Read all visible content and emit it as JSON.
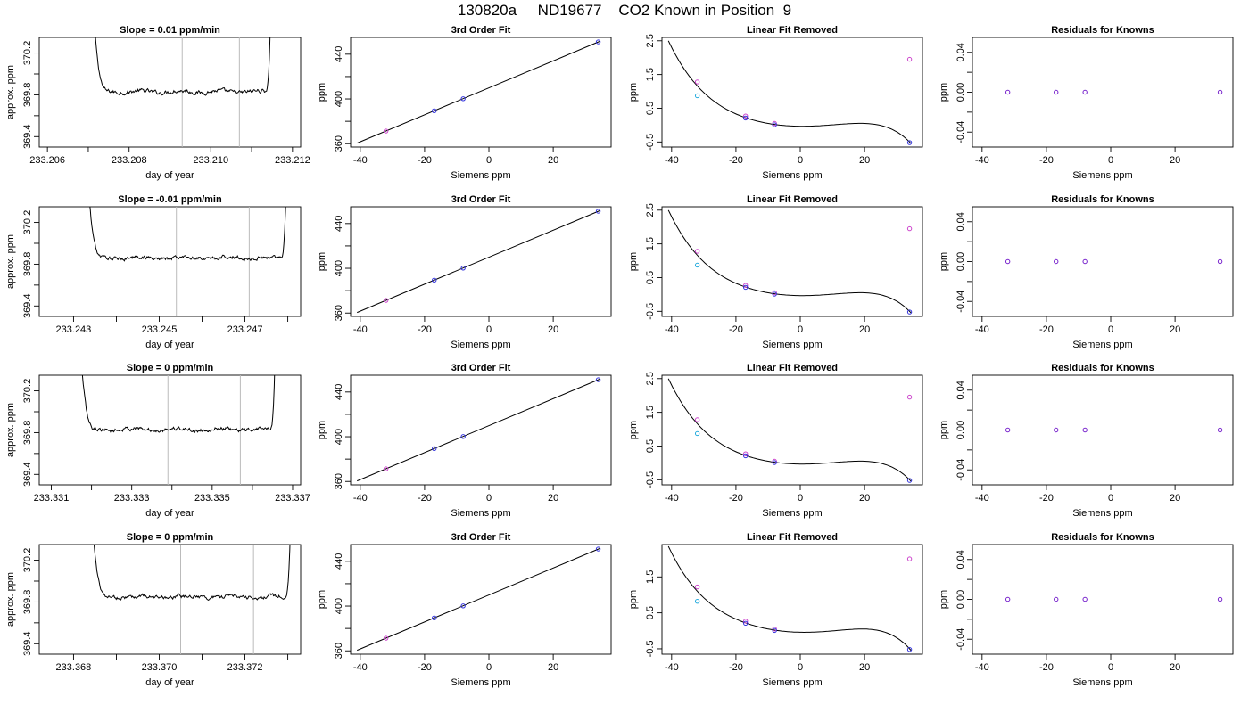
{
  "page_title": "130820a     ND19677    CO2 Known in Position  9",
  "chart_data": [
    {
      "type": "line",
      "panel": "trace",
      "row": 0,
      "title": "Slope =  0.01  ppm/min",
      "xlabel": "day of year",
      "ylabel": "approx. ppm",
      "xlim": [
        233.2058,
        233.2122
      ],
      "ylim": [
        369.3,
        370.35
      ],
      "xticks": [
        233.206,
        233.207,
        233.208,
        233.209,
        233.21,
        233.211,
        233.212
      ],
      "xtick_labels": [
        "233.206",
        "",
        "233.208",
        "",
        "233.210",
        "",
        "233.212"
      ],
      "yticks": [
        369.4,
        369.6,
        369.8,
        370.0,
        370.2
      ],
      "ytick_labels": [
        "369.4",
        "",
        "369.8",
        "",
        "370.2"
      ],
      "vlines": [
        233.2093,
        233.2107
      ],
      "trace": {
        "start": 233.2071,
        "end": 233.2115,
        "baseline": 369.83,
        "rise_left": 0.0004,
        "rise_right": 0.0002
      }
    },
    {
      "type": "scatter",
      "panel": "fit",
      "row": 0,
      "title": "3rd Order Fit",
      "xlabel": "Siemens ppm",
      "ylabel": "ppm",
      "xlim": [
        -43,
        38
      ],
      "ylim": [
        357,
        455
      ],
      "xticks": [
        -40,
        -20,
        0,
        20
      ],
      "xtick_labels": [
        "-40",
        "-20",
        "0",
        "20"
      ],
      "yticks": [
        360,
        380,
        400,
        420,
        440
      ],
      "ytick_labels": [
        "360",
        "",
        "400",
        "",
        "440"
      ],
      "line": {
        "x": [
          -41,
          34.5
        ],
        "y": [
          360.5,
          451.5
        ]
      },
      "points": [
        {
          "x": -32,
          "y": 371.3,
          "color": "#cc44cc"
        },
        {
          "x": -17,
          "y": 389.4,
          "color": "#3333dd"
        },
        {
          "x": -8,
          "y": 400.2,
          "color": "#3333dd"
        },
        {
          "x": 34,
          "y": 451.0,
          "color": "#3333dd"
        }
      ]
    },
    {
      "type": "scatter",
      "panel": "linear-removed",
      "row": 0,
      "title": "Linear Fit Removed",
      "xlabel": "Siemens ppm",
      "ylabel": "ppm",
      "xlim": [
        -43,
        38
      ],
      "ylim": [
        -0.65,
        2.6
      ],
      "xticks": [
        -40,
        -20,
        0,
        20
      ],
      "xtick_labels": [
        "-40",
        "-20",
        "0",
        "20"
      ],
      "yticks": [
        -0.5,
        0.5,
        1.5,
        2.5
      ],
      "ytick_labels": [
        "-0.5",
        "0.5",
        "1.5",
        "2.5"
      ],
      "curve_range": [
        -41,
        34.5
      ],
      "curve_points": [
        [
          -41,
          2.5
        ],
        [
          -32,
          1.16
        ],
        [
          -17,
          0.22
        ],
        [
          -8,
          0.02
        ],
        [
          20,
          0.05
        ],
        [
          34,
          -0.5
        ]
      ],
      "points": [
        {
          "x": -32,
          "y": 1.28,
          "color": "#cc44cc"
        },
        {
          "x": -32,
          "y": 0.87,
          "color": "#22aadd"
        },
        {
          "x": -17,
          "y": 0.27,
          "color": "#cc44cc"
        },
        {
          "x": -17,
          "y": 0.21,
          "color": "#3333dd"
        },
        {
          "x": -8,
          "y": 0.05,
          "color": "#cc44cc"
        },
        {
          "x": -8,
          "y": 0.01,
          "color": "#3333dd"
        },
        {
          "x": 34,
          "y": 1.95,
          "color": "#cc44cc"
        },
        {
          "x": 34,
          "y": -0.52,
          "color": "#3333dd"
        }
      ]
    },
    {
      "type": "scatter",
      "panel": "residuals",
      "row": 0,
      "title": "Residuals for Knowns",
      "xlabel": "Siemens ppm",
      "ylabel": "ppm",
      "xlim": [
        -43,
        38
      ],
      "ylim": [
        -0.055,
        0.055
      ],
      "xticks": [
        -40,
        -20,
        0,
        20
      ],
      "xtick_labels": [
        "-40",
        "-20",
        "0",
        "20"
      ],
      "yticks": [
        -0.04,
        -0.02,
        0,
        0.02,
        0.04
      ],
      "ytick_labels": [
        "-0.04",
        "",
        "0.00",
        "",
        "0.04"
      ],
      "points": [
        {
          "x": -32,
          "y": 0,
          "color": "#7722cc"
        },
        {
          "x": -17,
          "y": 0,
          "color": "#7722cc"
        },
        {
          "x": -8,
          "y": 0,
          "color": "#7722cc"
        },
        {
          "x": 34,
          "y": 0,
          "color": "#7722cc"
        }
      ]
    },
    {
      "type": "line",
      "panel": "trace",
      "row": 1,
      "title": "Slope =  -0.01  ppm/min",
      "xlabel": "day of year",
      "ylabel": "approx. ppm",
      "xlim": [
        233.2422,
        233.2483
      ],
      "ylim": [
        369.3,
        370.35
      ],
      "xticks": [
        233.243,
        233.244,
        233.245,
        233.246,
        233.247,
        233.248
      ],
      "xtick_labels": [
        "233.243",
        "",
        "233.245",
        "",
        "233.247",
        ""
      ],
      "yticks": [
        369.4,
        369.6,
        369.8,
        370.0,
        370.2
      ],
      "ytick_labels": [
        "369.4",
        "",
        "369.8",
        "",
        "370.2"
      ],
      "vlines": [
        233.2454,
        233.2471
      ],
      "trace": {
        "start": 233.2433,
        "end": 233.248,
        "baseline": 369.86,
        "rise_left": 0.0004,
        "rise_right": 0.0002
      }
    },
    {
      "type": "scatter",
      "panel": "fit",
      "row": 1,
      "title": "3rd Order Fit",
      "xlabel": "Siemens ppm",
      "ylabel": "ppm",
      "xlim": [
        -43,
        38
      ],
      "ylim": [
        357,
        455
      ],
      "xticks": [
        -40,
        -20,
        0,
        20
      ],
      "xtick_labels": [
        "-40",
        "-20",
        "0",
        "20"
      ],
      "yticks": [
        360,
        380,
        400,
        420,
        440
      ],
      "ytick_labels": [
        "360",
        "",
        "400",
        "",
        "440"
      ],
      "line": {
        "x": [
          -41,
          34.5
        ],
        "y": [
          360.5,
          451.5
        ]
      },
      "points": [
        {
          "x": -32,
          "y": 371.3,
          "color": "#cc44cc"
        },
        {
          "x": -17,
          "y": 389.4,
          "color": "#3333dd"
        },
        {
          "x": -8,
          "y": 400.2,
          "color": "#3333dd"
        },
        {
          "x": 34,
          "y": 451.0,
          "color": "#3333dd"
        }
      ]
    },
    {
      "type": "scatter",
      "panel": "linear-removed",
      "row": 1,
      "title": "Linear Fit Removed",
      "xlabel": "Siemens ppm",
      "ylabel": "ppm",
      "xlim": [
        -43,
        38
      ],
      "ylim": [
        -0.65,
        2.6
      ],
      "xticks": [
        -40,
        -20,
        0,
        20
      ],
      "xtick_labels": [
        "-40",
        "-20",
        "0",
        "20"
      ],
      "yticks": [
        -0.5,
        0.5,
        1.5,
        2.5
      ],
      "ytick_labels": [
        "-0.5",
        "0.5",
        "1.5",
        "2.5"
      ],
      "curve_range": [
        -41,
        34.5
      ],
      "curve_points": [
        [
          -41,
          2.5
        ],
        [
          -32,
          1.16
        ],
        [
          -17,
          0.22
        ],
        [
          -8,
          0.02
        ],
        [
          20,
          0.05
        ],
        [
          34,
          -0.5
        ]
      ],
      "points": [
        {
          "x": -32,
          "y": 1.28,
          "color": "#cc44cc"
        },
        {
          "x": -32,
          "y": 0.87,
          "color": "#22aadd"
        },
        {
          "x": -17,
          "y": 0.27,
          "color": "#cc44cc"
        },
        {
          "x": -17,
          "y": 0.21,
          "color": "#3333dd"
        },
        {
          "x": -8,
          "y": 0.05,
          "color": "#cc44cc"
        },
        {
          "x": -8,
          "y": 0.01,
          "color": "#3333dd"
        },
        {
          "x": 34,
          "y": 1.95,
          "color": "#cc44cc"
        },
        {
          "x": 34,
          "y": -0.52,
          "color": "#3333dd"
        }
      ]
    },
    {
      "type": "scatter",
      "panel": "residuals",
      "row": 1,
      "title": "Residuals for Knowns",
      "xlabel": "Siemens ppm",
      "ylabel": "ppm",
      "xlim": [
        -43,
        38
      ],
      "ylim": [
        -0.055,
        0.055
      ],
      "xticks": [
        -40,
        -20,
        0,
        20
      ],
      "xtick_labels": [
        "-40",
        "-20",
        "0",
        "20"
      ],
      "yticks": [
        -0.04,
        -0.02,
        0,
        0.02,
        0.04
      ],
      "ytick_labels": [
        "-0.04",
        "",
        "0.00",
        "",
        "0.04"
      ],
      "points": [
        {
          "x": -32,
          "y": 0,
          "color": "#7722cc"
        },
        {
          "x": -17,
          "y": 0,
          "color": "#7722cc"
        },
        {
          "x": -8,
          "y": 0,
          "color": "#7722cc"
        },
        {
          "x": 34,
          "y": 0,
          "color": "#7722cc"
        }
      ]
    },
    {
      "type": "line",
      "panel": "trace",
      "row": 2,
      "title": "Slope =  0  ppm/min",
      "xlabel": "day of year",
      "ylabel": "approx. ppm",
      "xlim": [
        233.3307,
        233.3372
      ],
      "ylim": [
        369.3,
        370.35
      ],
      "xticks": [
        233.331,
        233.332,
        233.333,
        233.334,
        233.335,
        233.336,
        233.337
      ],
      "xtick_labels": [
        "233.331",
        "",
        "233.333",
        "",
        "233.335",
        "",
        "233.337"
      ],
      "yticks": [
        369.4,
        369.6,
        369.8,
        370.0,
        370.2
      ],
      "ytick_labels": [
        "369.4",
        "",
        "369.8",
        "",
        "370.2"
      ],
      "vlines": [
        233.3339,
        233.3357
      ],
      "trace": {
        "start": 233.3317,
        "end": 233.3366,
        "baseline": 369.83,
        "rise_left": 0.0004,
        "rise_right": 0.0002
      }
    },
    {
      "type": "scatter",
      "panel": "fit",
      "row": 2,
      "title": "3rd Order Fit",
      "xlabel": "Siemens ppm",
      "ylabel": "ppm",
      "xlim": [
        -43,
        38
      ],
      "ylim": [
        357,
        455
      ],
      "xticks": [
        -40,
        -20,
        0,
        20
      ],
      "xtick_labels": [
        "-40",
        "-20",
        "0",
        "20"
      ],
      "yticks": [
        360,
        380,
        400,
        420,
        440
      ],
      "ytick_labels": [
        "360",
        "",
        "400",
        "",
        "440"
      ],
      "line": {
        "x": [
          -41,
          34.5
        ],
        "y": [
          360.5,
          451.5
        ]
      },
      "points": [
        {
          "x": -32,
          "y": 371.3,
          "color": "#cc44cc"
        },
        {
          "x": -17,
          "y": 389.4,
          "color": "#3333dd"
        },
        {
          "x": -8,
          "y": 400.2,
          "color": "#3333dd"
        },
        {
          "x": 34,
          "y": 451.0,
          "color": "#3333dd"
        }
      ]
    },
    {
      "type": "scatter",
      "panel": "linear-removed",
      "row": 2,
      "title": "Linear Fit Removed",
      "xlabel": "Siemens ppm",
      "ylabel": "ppm",
      "xlim": [
        -43,
        38
      ],
      "ylim": [
        -0.65,
        2.6
      ],
      "xticks": [
        -40,
        -20,
        0,
        20
      ],
      "xtick_labels": [
        "-40",
        "-20",
        "0",
        "20"
      ],
      "yticks": [
        -0.5,
        0.5,
        1.5,
        2.5
      ],
      "ytick_labels": [
        "-0.5",
        "0.5",
        "1.5",
        "2.5"
      ],
      "curve_range": [
        -41,
        34.5
      ],
      "curve_points": [
        [
          -41,
          2.5
        ],
        [
          -32,
          1.16
        ],
        [
          -17,
          0.22
        ],
        [
          -8,
          0.02
        ],
        [
          20,
          0.05
        ],
        [
          34,
          -0.5
        ]
      ],
      "points": [
        {
          "x": -32,
          "y": 1.28,
          "color": "#cc44cc"
        },
        {
          "x": -32,
          "y": 0.87,
          "color": "#22aadd"
        },
        {
          "x": -17,
          "y": 0.27,
          "color": "#cc44cc"
        },
        {
          "x": -17,
          "y": 0.21,
          "color": "#3333dd"
        },
        {
          "x": -8,
          "y": 0.05,
          "color": "#cc44cc"
        },
        {
          "x": -8,
          "y": 0.01,
          "color": "#3333dd"
        },
        {
          "x": 34,
          "y": 1.95,
          "color": "#cc44cc"
        },
        {
          "x": 34,
          "y": -0.52,
          "color": "#3333dd"
        }
      ]
    },
    {
      "type": "scatter",
      "panel": "residuals",
      "row": 2,
      "title": "Residuals for Knowns",
      "xlabel": "Siemens ppm",
      "ylabel": "ppm",
      "xlim": [
        -43,
        38
      ],
      "ylim": [
        -0.055,
        0.055
      ],
      "xticks": [
        -40,
        -20,
        0,
        20
      ],
      "xtick_labels": [
        "-40",
        "-20",
        "0",
        "20"
      ],
      "yticks": [
        -0.04,
        -0.02,
        0,
        0.02,
        0.04
      ],
      "ytick_labels": [
        "-0.04",
        "",
        "0.00",
        "",
        "0.04"
      ],
      "points": [
        {
          "x": -32,
          "y": 0,
          "color": "#7722cc"
        },
        {
          "x": -17,
          "y": 0,
          "color": "#7722cc"
        },
        {
          "x": -8,
          "y": 0,
          "color": "#7722cc"
        },
        {
          "x": 34,
          "y": 0,
          "color": "#7722cc"
        }
      ]
    },
    {
      "type": "line",
      "panel": "trace",
      "row": 3,
      "title": "Slope =  0  ppm/min",
      "xlabel": "day of year",
      "ylabel": "approx. ppm",
      "xlim": [
        233.3672,
        233.3733
      ],
      "ylim": [
        369.3,
        370.35
      ],
      "xticks": [
        233.368,
        233.369,
        233.37,
        233.371,
        233.372,
        233.373
      ],
      "xtick_labels": [
        "233.368",
        "",
        "233.370",
        "",
        "233.372",
        ""
      ],
      "yticks": [
        369.4,
        369.6,
        369.8,
        370.0,
        370.2
      ],
      "ytick_labels": [
        "369.4",
        "",
        "369.8",
        "",
        "370.2"
      ],
      "vlines": [
        233.3705,
        233.3722
      ],
      "trace": {
        "start": 233.3684,
        "end": 233.3731,
        "baseline": 369.85,
        "rise_left": 0.0004,
        "rise_right": 0.0002
      }
    },
    {
      "type": "scatter",
      "panel": "fit",
      "row": 3,
      "title": "3rd Order Fit",
      "xlabel": "Siemens ppm",
      "ylabel": "ppm",
      "xlim": [
        -43,
        38
      ],
      "ylim": [
        357,
        455
      ],
      "xticks": [
        -40,
        -20,
        0,
        20
      ],
      "xtick_labels": [
        "-40",
        "-20",
        "0",
        "20"
      ],
      "yticks": [
        360,
        380,
        400,
        420,
        440
      ],
      "ytick_labels": [
        "360",
        "",
        "400",
        "",
        "440"
      ],
      "line": {
        "x": [
          -41,
          34.5
        ],
        "y": [
          360.5,
          451.5
        ]
      },
      "points": [
        {
          "x": -32,
          "y": 371.3,
          "color": "#cc44cc"
        },
        {
          "x": -17,
          "y": 389.4,
          "color": "#3333dd"
        },
        {
          "x": -8,
          "y": 400.2,
          "color": "#3333dd"
        },
        {
          "x": 34,
          "y": 451.0,
          "color": "#3333dd"
        }
      ]
    },
    {
      "type": "scatter",
      "panel": "linear-removed",
      "row": 3,
      "title": "Linear Fit Removed",
      "xlabel": "Siemens ppm",
      "ylabel": "ppm",
      "xlim": [
        -43,
        38
      ],
      "ylim": [
        -0.65,
        2.4
      ],
      "xticks": [
        -40,
        -20,
        0,
        20
      ],
      "xtick_labels": [
        "-40",
        "-20",
        "0",
        "20"
      ],
      "yticks": [
        -0.5,
        0.5,
        1.5
      ],
      "ytick_labels": [
        "-0.5",
        "0.5",
        "1.5"
      ],
      "curve_range": [
        -41,
        34.5
      ],
      "curve_points": [
        [
          -41,
          2.35
        ],
        [
          -32,
          1.1
        ],
        [
          -17,
          0.22
        ],
        [
          -8,
          0.02
        ],
        [
          20,
          0.05
        ],
        [
          34,
          -0.5
        ]
      ],
      "points": [
        {
          "x": -32,
          "y": 1.22,
          "color": "#cc44cc"
        },
        {
          "x": -32,
          "y": 0.82,
          "color": "#22aadd"
        },
        {
          "x": -17,
          "y": 0.27,
          "color": "#cc44cc"
        },
        {
          "x": -17,
          "y": 0.21,
          "color": "#3333dd"
        },
        {
          "x": -8,
          "y": 0.05,
          "color": "#cc44cc"
        },
        {
          "x": -8,
          "y": 0.01,
          "color": "#3333dd"
        },
        {
          "x": 34,
          "y": 2.0,
          "color": "#cc44cc"
        },
        {
          "x": 34,
          "y": -0.52,
          "color": "#3333dd"
        }
      ]
    },
    {
      "type": "scatter",
      "panel": "residuals",
      "row": 3,
      "title": "Residuals for Knowns",
      "xlabel": "Siemens ppm",
      "ylabel": "ppm",
      "xlim": [
        -43,
        38
      ],
      "ylim": [
        -0.055,
        0.055
      ],
      "xticks": [
        -40,
        -20,
        0,
        20
      ],
      "xtick_labels": [
        "-40",
        "-20",
        "0",
        "20"
      ],
      "yticks": [
        -0.04,
        -0.02,
        0,
        0.02,
        0.04
      ],
      "ytick_labels": [
        "-0.04",
        "",
        "0.00",
        "",
        "0.04"
      ],
      "points": [
        {
          "x": -32,
          "y": 0,
          "color": "#7722cc"
        },
        {
          "x": -17,
          "y": 0,
          "color": "#7722cc"
        },
        {
          "x": -8,
          "y": 0,
          "color": "#7722cc"
        },
        {
          "x": 34,
          "y": 0,
          "color": "#7722cc"
        }
      ]
    }
  ]
}
